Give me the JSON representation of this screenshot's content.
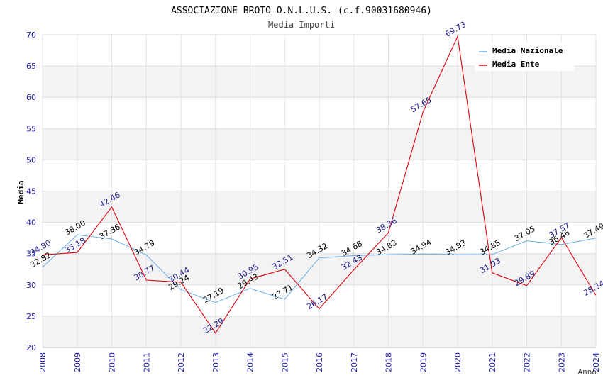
{
  "chart_data": {
    "type": "line",
    "title": "ASSOCIAZIONE BROTO O.N.L.U.S. (c.f.90031680946)",
    "subtitle": "Media Importi",
    "xlabel": "Anno",
    "ylabel": "Media",
    "ylim": [
      20,
      70
    ],
    "yticks": [
      "20",
      "25",
      "30",
      "35",
      "40",
      "45",
      "50",
      "55",
      "60",
      "65",
      "70"
    ],
    "categories": [
      "2008",
      "2009",
      "2010",
      "2011",
      "2012",
      "2013",
      "2014",
      "2015",
      "2016",
      "2017",
      "2018",
      "2019",
      "2020",
      "2021",
      "2022",
      "2023",
      "2024"
    ],
    "legend_position": "top-right",
    "grid": "horizontal bands",
    "series": [
      {
        "name": "Media Nazionale",
        "color": "#6aaee8",
        "label_color": "#000000",
        "values": [
          32.82,
          38.0,
          37.36,
          34.79,
          29.24,
          27.19,
          29.43,
          27.71,
          34.32,
          34.68,
          34.83,
          34.94,
          34.83,
          34.85,
          37.05,
          36.46,
          37.49
        ],
        "labels": [
          "32.82",
          "38.00",
          "37.36",
          "34.79",
          "29.24",
          "27.19",
          "29.43",
          "27.71",
          "34.32",
          "34.68",
          "34.83",
          "34.94",
          "34.83",
          "34.85",
          "37.05",
          "36.46",
          "37.49"
        ]
      },
      {
        "name": "Media Ente",
        "color": "#e0000b",
        "label_color": "#1a1a8c",
        "values": [
          34.8,
          35.18,
          42.46,
          30.77,
          30.44,
          22.29,
          30.95,
          32.51,
          26.17,
          32.43,
          38.36,
          57.65,
          69.73,
          31.93,
          29.89,
          37.57,
          28.34
        ],
        "labels": [
          "34.80",
          "35.18",
          "42.46",
          "30.77",
          "30.44",
          "22.29",
          "30.95",
          "32.51",
          "26.17",
          "32.43",
          "38.36",
          "57.65",
          "69.73",
          "31.93",
          "29.89",
          "37.57",
          "28.34"
        ]
      }
    ]
  }
}
